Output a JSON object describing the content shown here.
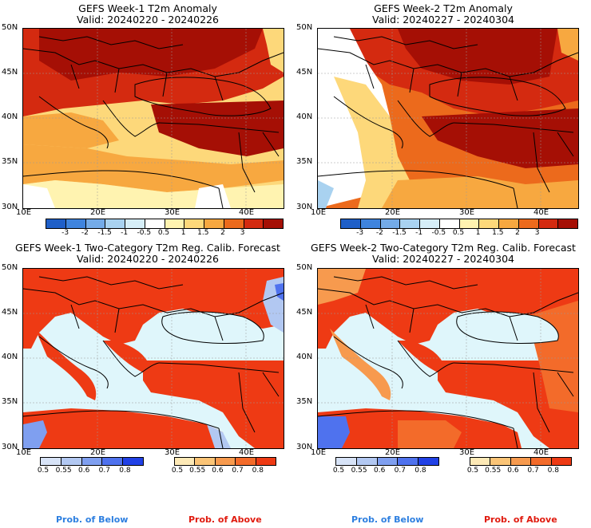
{
  "panels": [
    {
      "title": "GEFS Week-1 T2m Anomaly",
      "valid": "Valid: 20240220 - 20240226"
    },
    {
      "title": "GEFS Week-2 T2m Anomaly",
      "valid": "Valid: 20240227 - 20240304"
    },
    {
      "title": "GEFS Week-1 Two-Category T2m Reg. Calib. Forecast",
      "valid": "Valid: 20240220 - 20240226"
    },
    {
      "title": "GEFS Week-2 Two-Category T2m Reg. Calib. Forecast",
      "valid": "Valid: 20240227 - 20240304"
    }
  ],
  "lat_labels": [
    "50N",
    "45N",
    "40N",
    "35N",
    "30N"
  ],
  "lon_labels": [
    "10E",
    "20E",
    "30E",
    "40E"
  ],
  "anomaly_colorbar": {
    "labels": [
      "-3",
      "-2",
      "-1.5",
      "-1",
      "-0.5",
      "0.5",
      "1",
      "1.5",
      "2",
      "3"
    ],
    "colors": [
      "#1f5fc8",
      "#3f84de",
      "#74abe8",
      "#a9d2f0",
      "#d6eef8",
      "#ffffff",
      "#fff3b0",
      "#fdd87a",
      "#f7a840",
      "#ec6a1c",
      "#d42a10",
      "#a50f05"
    ]
  },
  "below_colorbar": {
    "labels": [
      "0.5",
      "0.55",
      "0.6",
      "0.7",
      "0.8"
    ],
    "colors": [
      "#d7e3f7",
      "#b2c8f2",
      "#7f9ff0",
      "#4f72ee",
      "#2141e6"
    ]
  },
  "above_colorbar": {
    "labels": [
      "0.5",
      "0.55",
      "0.6",
      "0.7",
      "0.8"
    ],
    "colors": [
      "#fde9b6",
      "#fbc476",
      "#f79a4e",
      "#f36b2a",
      "#ee3a14"
    ]
  },
  "prob_below": "Prob. of Below",
  "prob_above": "Prob. of Above",
  "colors": {
    "sea_light": "#dff6fb",
    "above_strong": "#ee3a14",
    "anomaly_max": "#a50f05"
  }
}
